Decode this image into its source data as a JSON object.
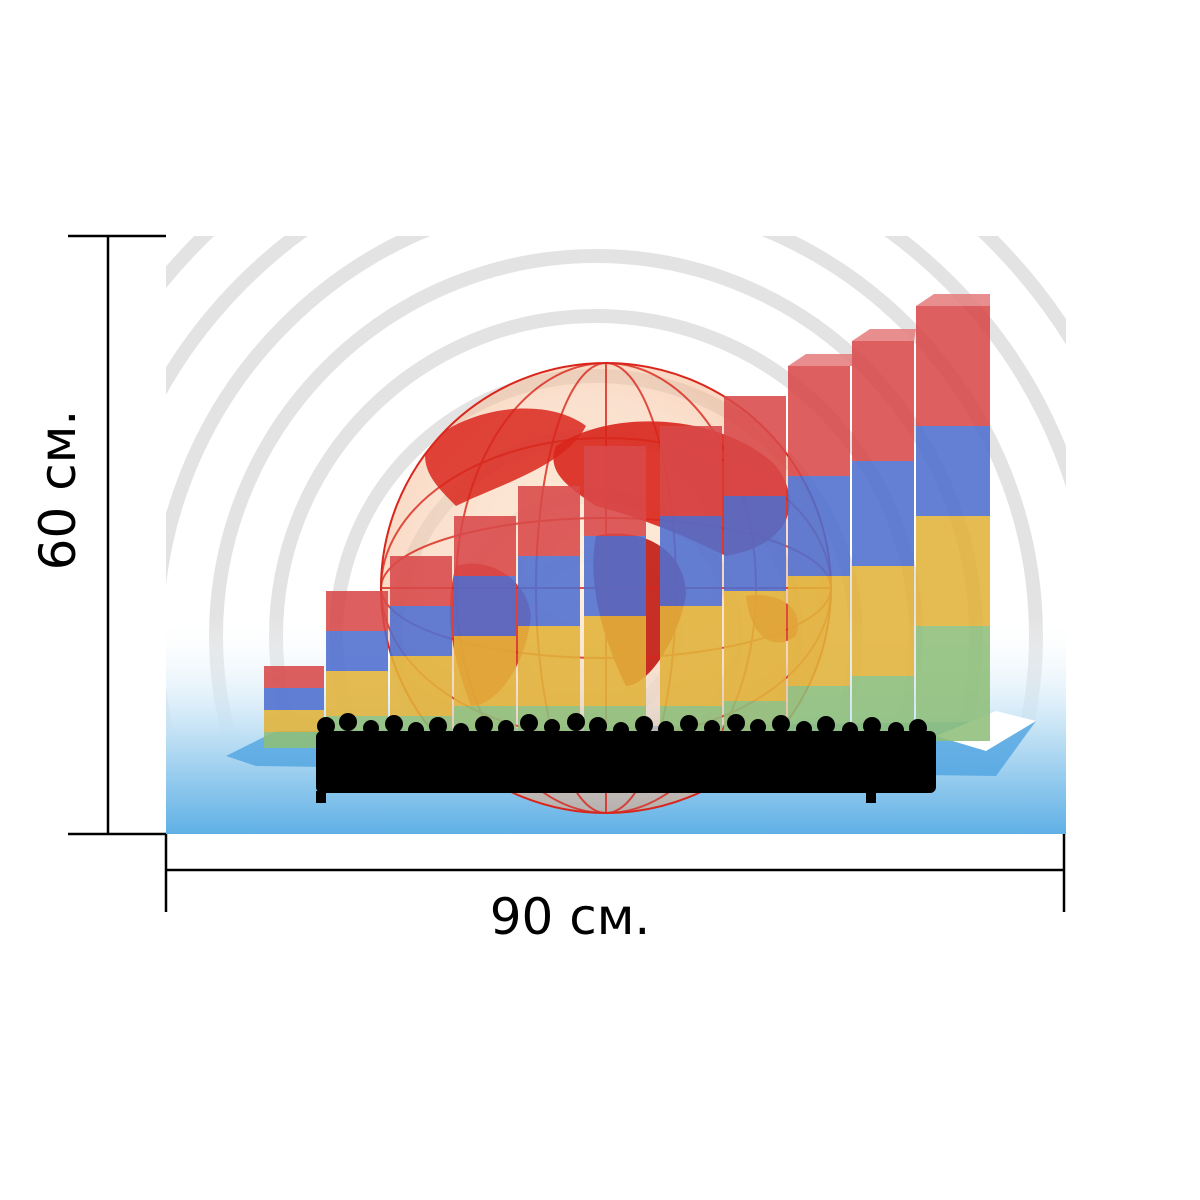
{
  "dimensions": {
    "width_label": "90 см.",
    "height_label": "60 см."
  },
  "poster": {
    "background_colors": [
      "#ffffff",
      "#e6e6e6",
      "#6fb7e6"
    ],
    "bar_colors": {
      "red": "#d9494a",
      "blue": "#4f6fd0",
      "yellow": "#e2b33a",
      "green": "#8fbf7a"
    },
    "globe_color": "#d9261c",
    "silhouette_color": "#000000"
  }
}
